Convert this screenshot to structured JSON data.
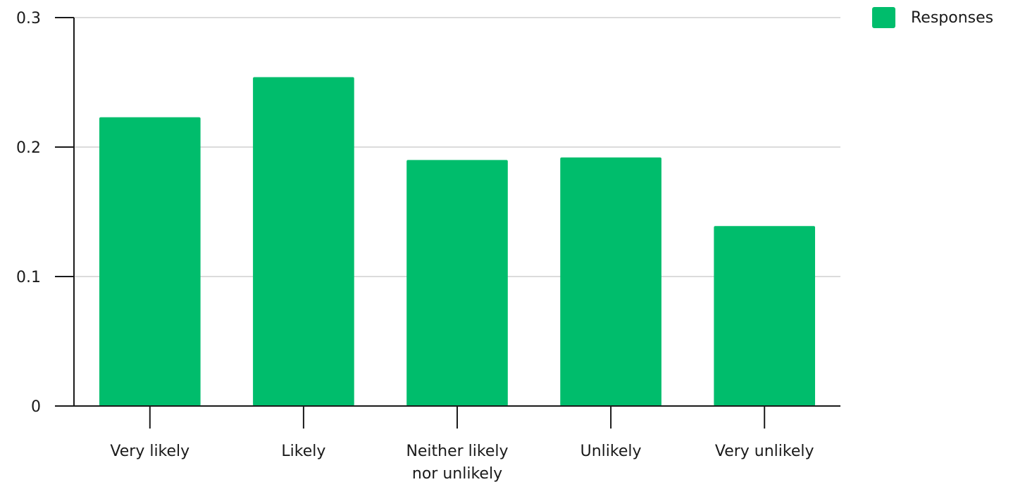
{
  "chart_data": {
    "type": "bar",
    "categories": [
      "Very likely",
      "Likely",
      "Neither likely nor unlikely",
      "Unlikely",
      "Very unlikely"
    ],
    "category_lines": [
      [
        "Very likely"
      ],
      [
        "Likely"
      ],
      [
        "Neither likely",
        "nor unlikely"
      ],
      [
        "Unlikely"
      ],
      [
        "Very unlikely"
      ]
    ],
    "series": [
      {
        "name": "Responses",
        "values": [
          0.223,
          0.254,
          0.19,
          0.192,
          0.139
        ],
        "color": "#00bd6c"
      }
    ],
    "y_ticks": [
      "0",
      "0.1",
      "0.2",
      "0.3"
    ],
    "ylim": [
      0,
      0.3
    ],
    "grid": true,
    "legend_position": "top-right"
  }
}
